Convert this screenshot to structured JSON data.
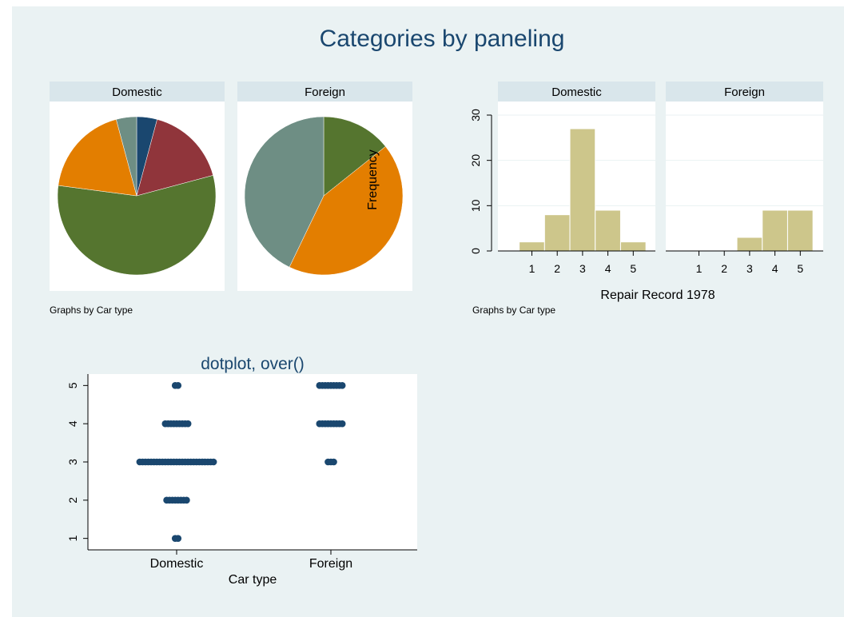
{
  "title": "Categories by paneling",
  "colors": {
    "background": "#eaf2f3",
    "panel_header": "#d9e6eb",
    "title_text": "#1a476f",
    "bar_fill": "#cdc68b",
    "bar_stroke": "#ffffff",
    "dot": "#1a476f",
    "slice_1": "#1a476f",
    "slice_2": "#90353b",
    "slice_3": "#55752f",
    "slice_4": "#e37e00",
    "slice_5": "#6e8e84"
  },
  "chart_data": [
    {
      "type": "pie",
      "by_note": "Graphs by Car type",
      "panels": [
        {
          "name": "Domestic",
          "categories": [
            "1",
            "2",
            "3",
            "4",
            "5"
          ],
          "values": [
            2,
            8,
            27,
            9,
            2
          ]
        },
        {
          "name": "Foreign",
          "categories": [
            "1",
            "2",
            "3",
            "4",
            "5"
          ],
          "values": [
            0,
            0,
            3,
            9,
            9
          ]
        }
      ]
    },
    {
      "type": "bar",
      "xlabel": "Repair Record 1978",
      "ylabel": "Frequency",
      "ylim": [
        0,
        33
      ],
      "yticks": [
        0,
        10,
        20,
        30
      ],
      "xticks": [
        1,
        2,
        3,
        4,
        5
      ],
      "by_note": "Graphs by Car type",
      "panels": [
        {
          "name": "Domestic",
          "categories": [
            1,
            2,
            3,
            4,
            5
          ],
          "values": [
            2,
            8,
            27,
            9,
            2
          ]
        },
        {
          "name": "Foreign",
          "categories": [
            1,
            2,
            3,
            4,
            5
          ],
          "values": [
            0,
            0,
            3,
            9,
            9
          ]
        }
      ]
    },
    {
      "type": "scatter",
      "title": "dotplot, over()",
      "xlabel": "Car type",
      "categories": [
        "Domestic",
        "Foreign"
      ],
      "ylim": [
        0.7,
        5.3
      ],
      "yticks": [
        1,
        2,
        3,
        4,
        5
      ],
      "counts": [
        {
          "name": "Domestic",
          "values": [
            2,
            8,
            27,
            9,
            2
          ]
        },
        {
          "name": "Foreign",
          "values": [
            0,
            0,
            3,
            9,
            9
          ]
        }
      ]
    }
  ]
}
